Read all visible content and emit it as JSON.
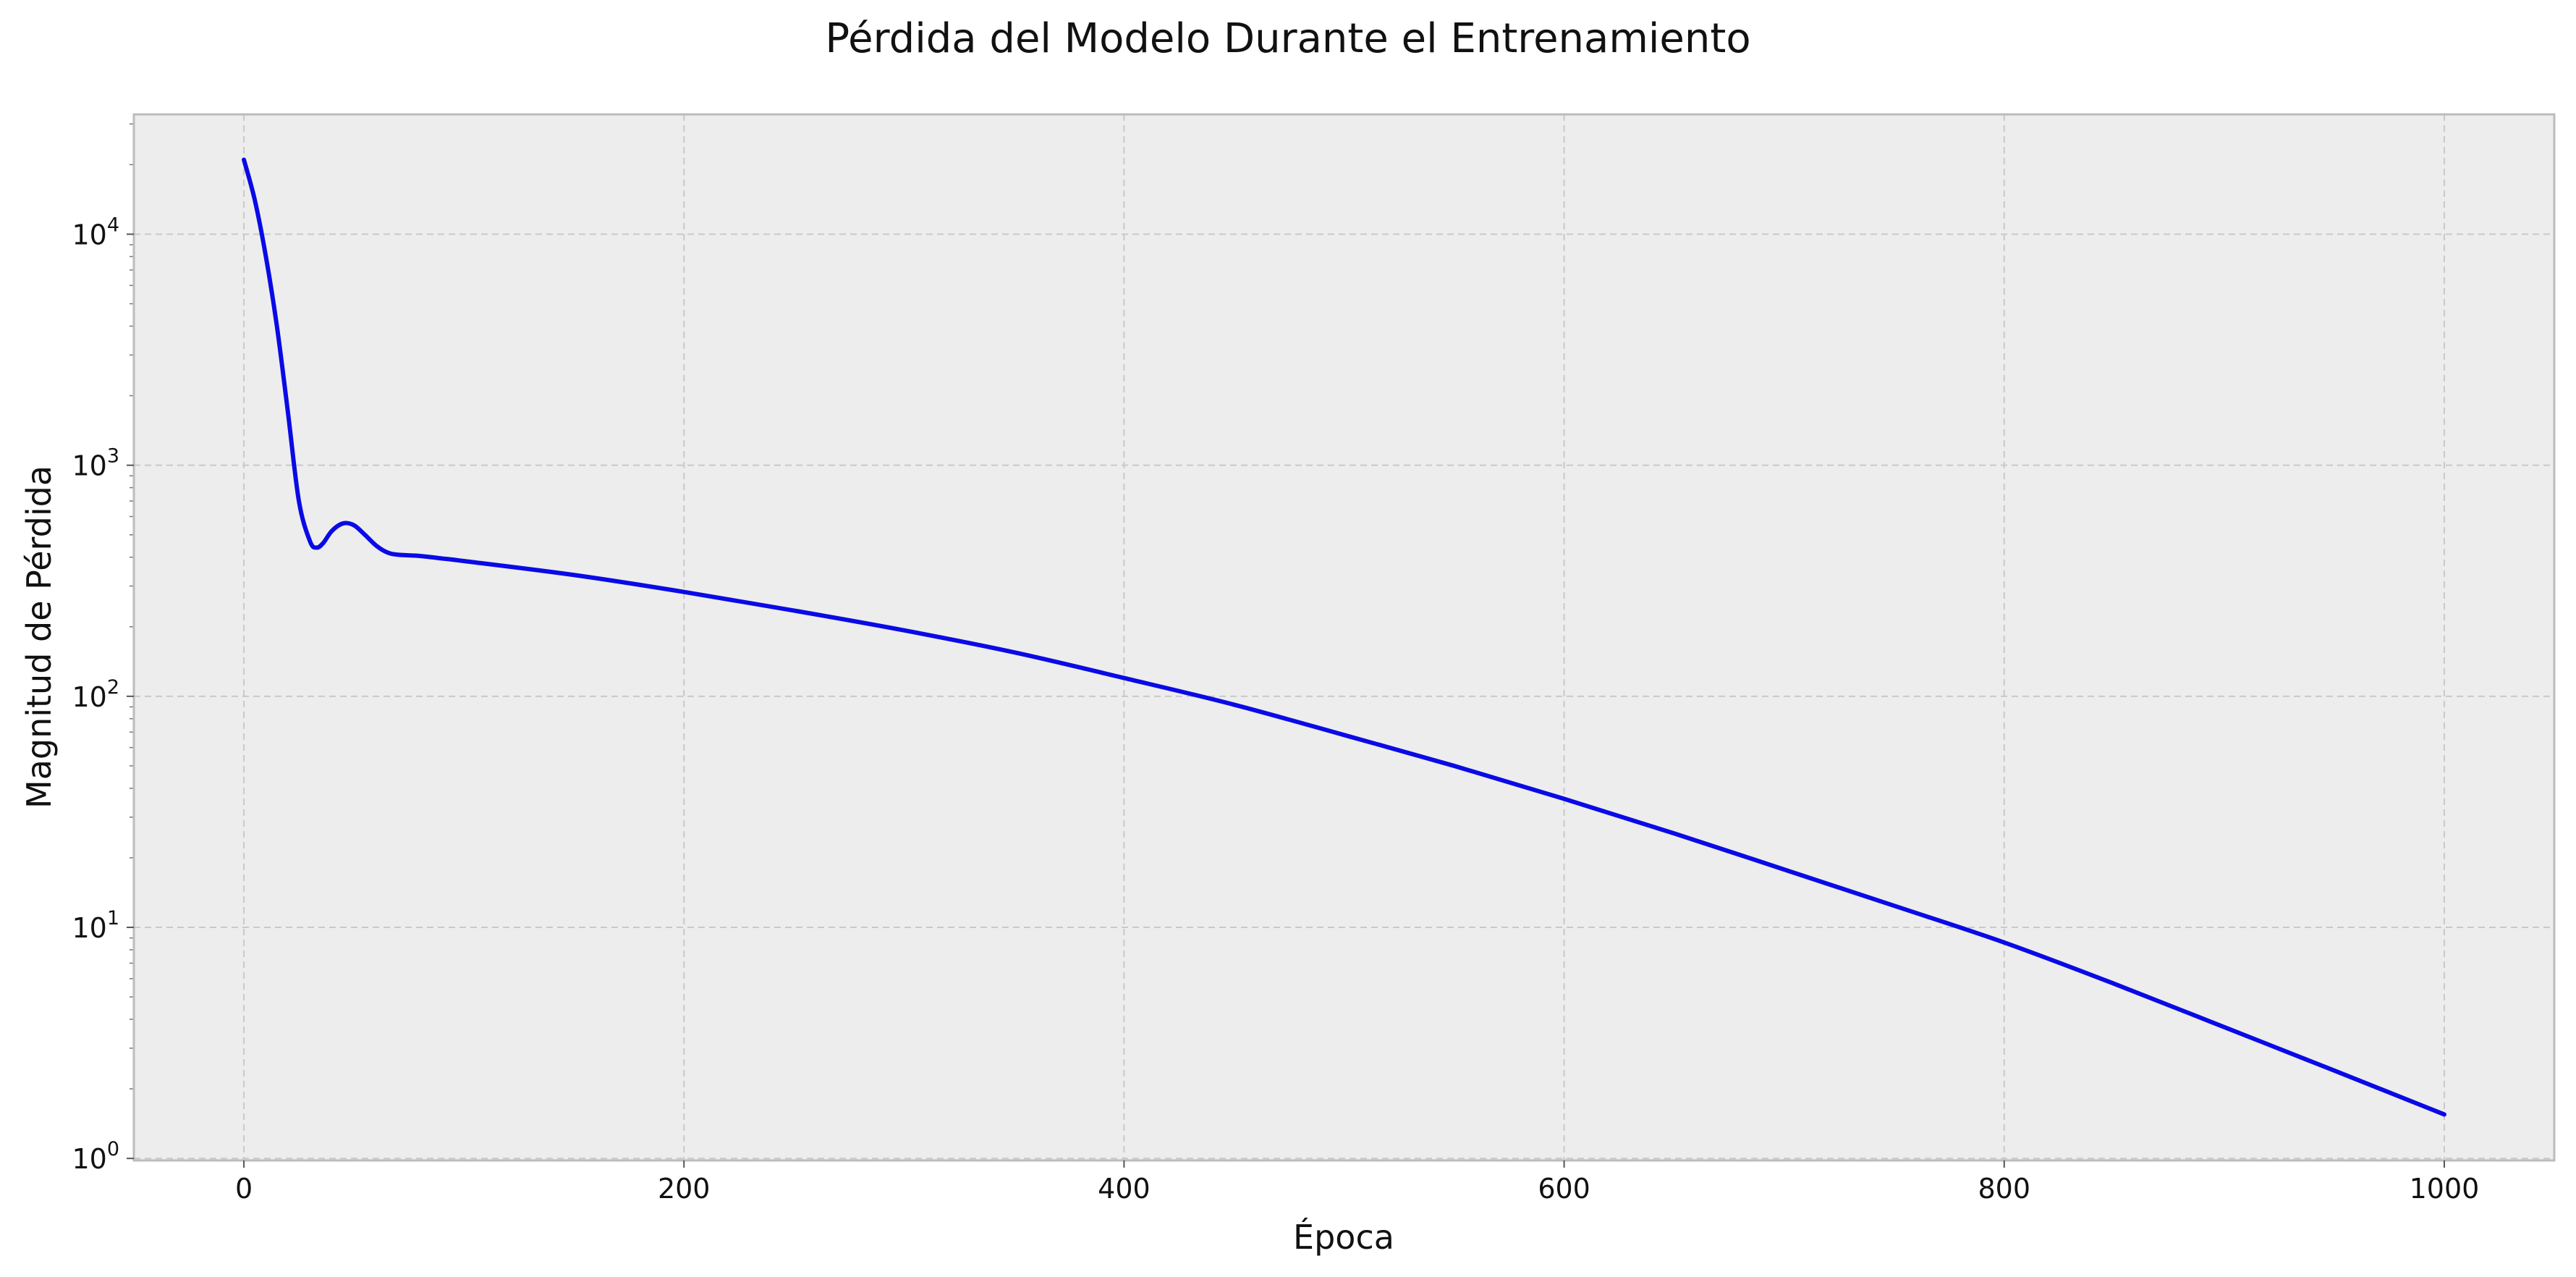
{
  "chart_data": {
    "type": "line",
    "title": "Pérdida del Modelo Durante el Entrenamiento",
    "xlabel": "Época",
    "ylabel": "Magnitud de Pérdida",
    "xlim": [
      -50,
      1050
    ],
    "ylim": [
      0.98,
      33000
    ],
    "yscale": "log",
    "grid": true,
    "xticks": [
      {
        "value": 0,
        "label": "0"
      },
      {
        "value": 200,
        "label": "200"
      },
      {
        "value": 400,
        "label": "400"
      },
      {
        "value": 600,
        "label": "600"
      },
      {
        "value": 800,
        "label": "800"
      },
      {
        "value": 1000,
        "label": "1000"
      }
    ],
    "yticks": [
      {
        "value": 1,
        "base": "10",
        "exp": "0"
      },
      {
        "value": 10,
        "base": "10",
        "exp": "1"
      },
      {
        "value": 100,
        "base": "10",
        "exp": "2"
      },
      {
        "value": 1000,
        "base": "10",
        "exp": "3"
      },
      {
        "value": 10000,
        "base": "10",
        "exp": "4"
      }
    ],
    "series": [
      {
        "color": "#0a0ae6",
        "x": [
          0,
          5,
          10,
          15,
          20,
          25,
          30,
          33,
          36,
          40,
          45,
          50,
          55,
          60,
          65,
          70,
          80,
          90,
          100,
          150,
          200,
          250,
          300,
          350,
          400,
          450,
          500,
          550,
          600,
          650,
          700,
          750,
          800,
          850,
          900,
          950,
          1000
        ],
        "y": [
          21000,
          14000,
          8000,
          4000,
          1700,
          700,
          470,
          440,
          460,
          520,
          560,
          550,
          500,
          450,
          420,
          410,
          405,
          395,
          385,
          335,
          283,
          235,
          193,
          155,
          120,
          92,
          68,
          50,
          36,
          25.5,
          17.8,
          12.4,
          8.6,
          5.7,
          3.7,
          2.4,
          1.55
        ]
      }
    ]
  }
}
